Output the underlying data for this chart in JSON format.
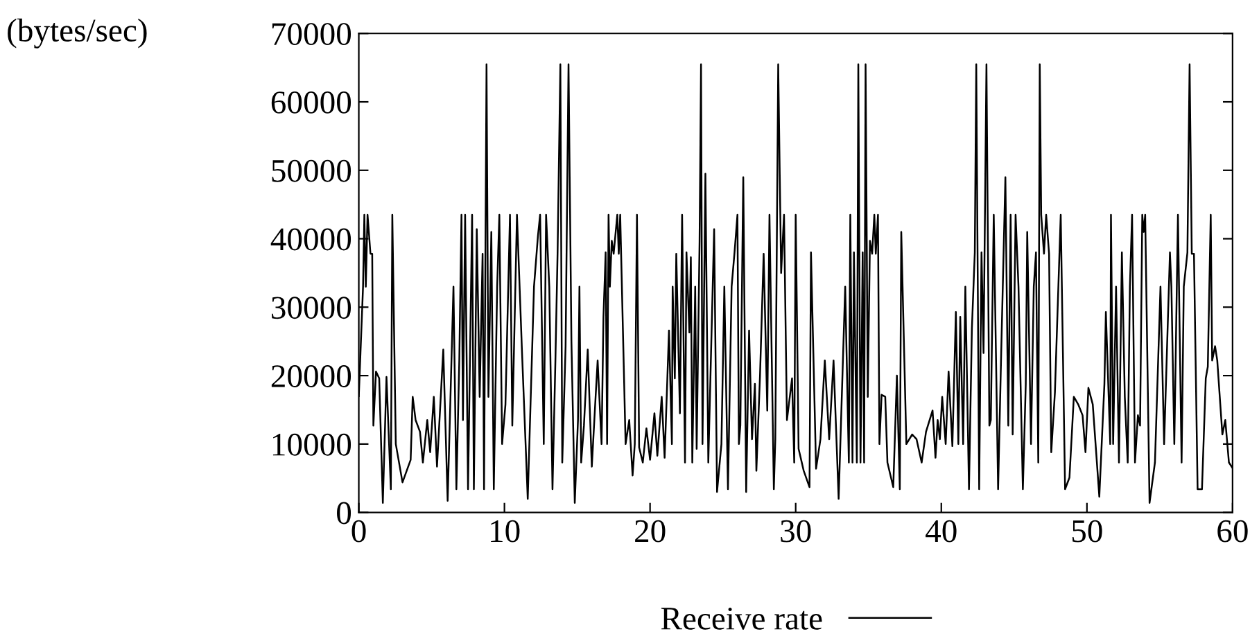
{
  "chart_data": {
    "type": "line",
    "ylabel": "(bytes/sec)",
    "xlim": [
      0,
      60
    ],
    "ylim": [
      0,
      70000
    ],
    "xticks": [
      0,
      10,
      20,
      30,
      40,
      50,
      60
    ],
    "yticks": [
      0,
      10000,
      20000,
      30000,
      40000,
      50000,
      60000,
      70000
    ],
    "grid": false,
    "legend": "bottom",
    "marker": "none",
    "line_style": "solid",
    "series": [
      {
        "name": "Receive rate",
        "color": "#000000",
        "x": [
          0,
          0.29,
          0.38,
          0.48,
          0.6,
          0.8,
          0.92,
          1.0,
          1.18,
          1.4,
          1.65,
          1.9,
          2.2,
          2.3,
          2.54,
          3.0,
          3.56,
          3.7,
          3.9,
          4.2,
          4.4,
          4.7,
          4.9,
          5.15,
          5.37,
          5.8,
          6.1,
          6.5,
          6.7,
          6.9,
          7.05,
          7.15,
          7.3,
          7.5,
          7.78,
          7.9,
          8.1,
          8.3,
          8.5,
          8.6,
          8.77,
          8.9,
          9.1,
          9.27,
          9.5,
          9.65,
          9.84,
          10.07,
          10.38,
          10.54,
          10.86,
          11.2,
          11.6,
          12.03,
          12.3,
          12.45,
          12.7,
          12.86,
          13.08,
          13.3,
          13.5,
          13.65,
          13.84,
          13.97,
          14.2,
          14.4,
          14.6,
          14.83,
          15.05,
          15.15,
          15.27,
          15.46,
          15.72,
          16.0,
          16.26,
          16.4,
          16.67,
          16.8,
          16.95,
          17.05,
          17.15,
          17.24,
          17.37,
          17.5,
          17.75,
          17.85,
          17.95,
          18.32,
          18.57,
          18.8,
          18.95,
          19.1,
          19.25,
          19.5,
          19.75,
          20.0,
          20.3,
          20.5,
          20.8,
          21.0,
          21.3,
          21.5,
          21.55,
          21.7,
          21.8,
          22.05,
          22.2,
          22.4,
          22.5,
          22.7,
          22.8,
          22.9,
          23.1,
          23.2,
          23.4,
          23.5,
          23.6,
          23.8,
          24.0,
          24.4,
          24.6,
          24.9,
          25.1,
          25.35,
          25.6,
          25.8,
          26.0,
          26.1,
          26.2,
          26.4,
          26.6,
          26.8,
          27.0,
          27.2,
          27.3,
          27.55,
          27.8,
          28.05,
          28.2,
          28.5,
          28.6,
          28.8,
          29.0,
          29.2,
          29.4,
          29.75,
          29.9,
          30.0,
          30.2,
          30.55,
          30.95,
          31.05,
          31.4,
          31.7,
          32.0,
          32.3,
          32.6,
          32.95,
          33.4,
          33.65,
          33.75,
          33.9,
          34.0,
          34.2,
          34.3,
          34.45,
          34.6,
          34.7,
          34.8,
          34.95,
          35.1,
          35.25,
          35.4,
          35.5,
          35.65,
          35.75,
          35.9,
          36.15,
          36.3,
          36.7,
          36.95,
          37.15,
          37.25,
          37.6,
          38.0,
          38.3,
          38.65,
          38.95,
          39.4,
          39.6,
          39.75,
          39.9,
          40.06,
          40.3,
          40.5,
          40.76,
          41.0,
          41.17,
          41.3,
          41.5,
          41.65,
          41.9,
          42.1,
          42.3,
          42.4,
          42.6,
          42.76,
          42.9,
          43.1,
          43.3,
          43.4,
          43.6,
          43.9,
          44.1,
          44.4,
          44.6,
          44.76,
          44.9,
          45.1,
          45.3,
          45.6,
          45.8,
          45.9,
          46.16,
          46.35,
          46.5,
          46.66,
          46.76,
          46.86,
          47.05,
          47.2,
          47.4,
          47.55,
          47.8,
          48.2,
          48.5,
          48.8,
          49.1,
          49.4,
          49.7,
          49.9,
          50.1,
          50.4,
          50.85,
          51.2,
          51.3,
          51.6,
          51.65,
          51.8,
          52.0,
          52.2,
          52.4,
          52.6,
          52.8,
          52.95,
          53.1,
          53.3,
          53.5,
          53.65,
          53.8,
          53.9,
          54.0,
          54.3,
          54.67,
          55.05,
          55.3,
          55.7,
          55.8,
          56.0,
          56.25,
          56.5,
          56.65,
          56.9,
          57.05,
          57.2,
          57.35,
          57.6,
          57.9,
          58.16,
          58.3,
          58.5,
          58.6,
          58.8,
          58.95,
          59.3,
          59.5,
          59.75,
          60
        ],
        "values": [
          17000,
          33000,
          43500,
          33000,
          43500,
          37800,
          37800,
          12700,
          20600,
          19600,
          1400,
          19800,
          3400,
          43500,
          10000,
          4400,
          7700,
          16900,
          13500,
          11800,
          7300,
          13500,
          8800,
          16900,
          6700,
          23800,
          1700,
          33000,
          3400,
          22200,
          43500,
          13500,
          43500,
          3400,
          43500,
          3400,
          41400,
          16900,
          37800,
          3400,
          65500,
          16900,
          41000,
          3400,
          33000,
          43500,
          10000,
          15800,
          43500,
          12700,
          43500,
          23800,
          2000,
          33000,
          40400,
          43500,
          10000,
          43500,
          33000,
          3400,
          22200,
          38000,
          65500,
          7300,
          24300,
          65500,
          25000,
          1400,
          13500,
          33000,
          7300,
          12700,
          23800,
          6700,
          16900,
          22200,
          10000,
          28600,
          38000,
          10000,
          43500,
          33000,
          39700,
          37800,
          43500,
          37800,
          43500,
          10000,
          13500,
          5400,
          10000,
          43500,
          9500,
          7300,
          12300,
          7700,
          14500,
          8300,
          16900,
          8000,
          26600,
          10000,
          33000,
          19600,
          37800,
          14500,
          43500,
          7300,
          38000,
          26300,
          37300,
          7300,
          33000,
          9300,
          39700,
          65500,
          10000,
          49500,
          7300,
          41400,
          3000,
          10000,
          33000,
          3400,
          33000,
          38000,
          43500,
          10000,
          12700,
          49000,
          3000,
          26600,
          10700,
          18800,
          6100,
          20000,
          37800,
          14900,
          43500,
          3400,
          10700,
          65500,
          35000,
          43500,
          13500,
          19600,
          7300,
          43500,
          9300,
          6100,
          3700,
          38000,
          6400,
          10700,
          22200,
          10700,
          22200,
          2000,
          33000,
          7300,
          43500,
          7300,
          38000,
          7300,
          65500,
          7300,
          38000,
          7300,
          65500,
          16900,
          39700,
          37800,
          43500,
          37800,
          43500,
          10000,
          17200,
          16900,
          7300,
          3700,
          20000,
          3400,
          41000,
          10000,
          11400,
          10700,
          7300,
          11800,
          14900,
          8000,
          13500,
          10700,
          16900,
          10000,
          20600,
          9700,
          29300,
          10000,
          28600,
          10000,
          33000,
          3400,
          26900,
          38000,
          65500,
          3400,
          38000,
          23300,
          65500,
          12700,
          13500,
          43500,
          3400,
          22200,
          49000,
          12700,
          43500,
          11400,
          43500,
          33000,
          3400,
          18800,
          41000,
          10000,
          33000,
          38000,
          7300,
          65500,
          43500,
          37800,
          43500,
          37800,
          8800,
          17500,
          43500,
          3400,
          5100,
          16900,
          15800,
          14200,
          8800,
          18200,
          15800,
          2300,
          18800,
          29300,
          10000,
          43500,
          10000,
          33000,
          7300,
          38000,
          16900,
          7300,
          33000,
          43500,
          7300,
          14200,
          12700,
          43500,
          41000,
          43500,
          1400,
          7300,
          33000,
          10000,
          38000,
          33000,
          10000,
          43500,
          7300,
          33000,
          38000,
          65500,
          37800,
          37800,
          3400,
          3400,
          19600,
          21300,
          43500,
          22200,
          24300,
          22200,
          11400,
          13500,
          7300,
          6500
        ]
      }
    ]
  }
}
